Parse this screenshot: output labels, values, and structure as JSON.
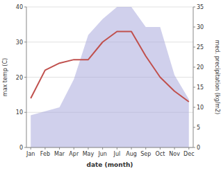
{
  "chart_data": {
    "type": "line",
    "categories": [
      "Jan",
      "Feb",
      "Mar",
      "Apr",
      "May",
      "Jun",
      "Jul",
      "Aug",
      "Sep",
      "Oct",
      "Nov",
      "Dec"
    ],
    "series": [
      {
        "type": "area",
        "axis": "y2",
        "color": "#aaaadd",
        "values": [
          8,
          9,
          10,
          17,
          28,
          32,
          35,
          35,
          30,
          30,
          18,
          12
        ]
      },
      {
        "type": "line",
        "color": "#c0504d",
        "values": [
          14,
          22,
          24,
          25,
          25,
          30,
          33,
          33,
          26,
          20,
          16,
          13
        ]
      }
    ],
    "xlabel": "date (month)",
    "ylabel": "max temp (C)",
    "y2label": "med. precipitation (kg/m2)",
    "ylim": [
      0,
      40
    ],
    "yticks": [
      0,
      10,
      20,
      30,
      40
    ],
    "y2lim": [
      0,
      35
    ],
    "y2ticks": [
      0,
      5,
      10,
      15,
      20,
      25,
      30,
      35
    ],
    "grid": true
  }
}
